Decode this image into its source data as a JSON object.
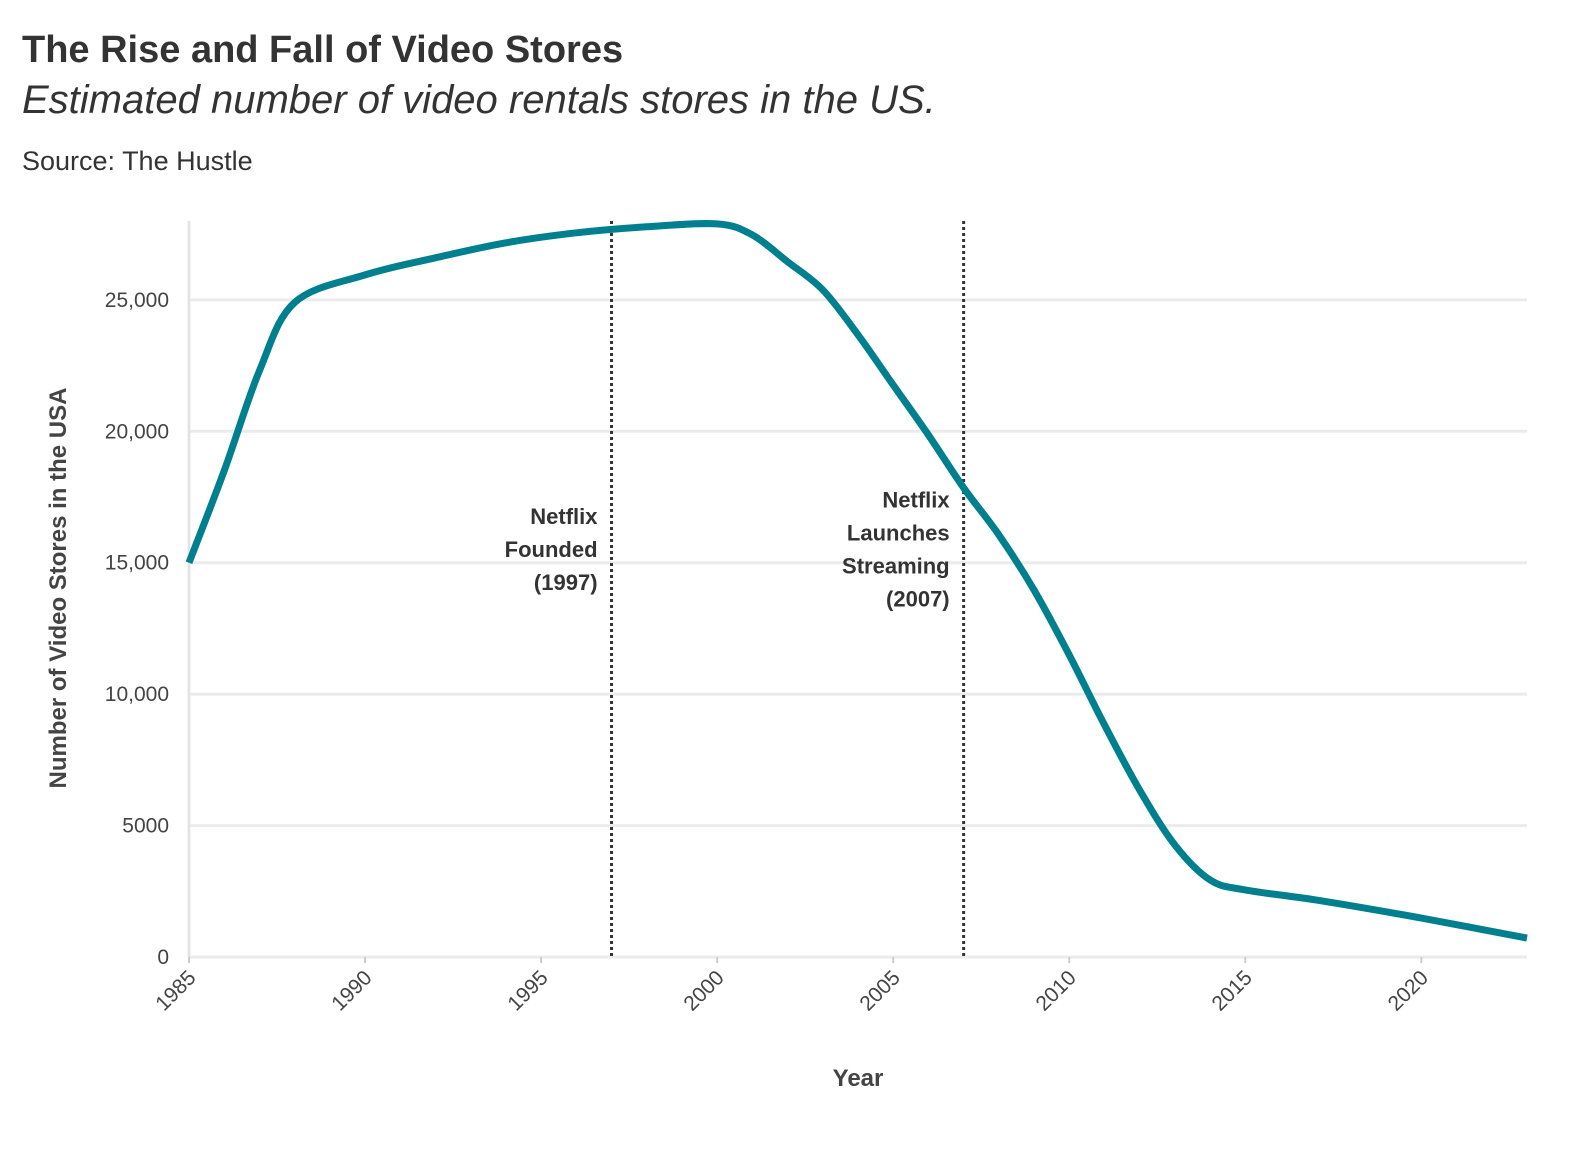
{
  "chart_data": {
    "type": "line",
    "title": "The Rise and Fall of Video Stores",
    "subtitle": "Estimated number of video rentals stores in the US.",
    "source": "Source: The Hustle",
    "x_label": "Year",
    "y_label": "Number of Video Stores in the USA",
    "x": [
      1985,
      1986,
      1987,
      1988,
      1990,
      1992,
      1994,
      1996,
      1998,
      2000,
      2001,
      2002,
      2003,
      2004,
      2005,
      2006,
      2007,
      2008,
      2009,
      2010,
      2011,
      2012,
      2013,
      2014,
      2015,
      2017,
      2020,
      2023
    ],
    "series": [
      {
        "name": "Video stores",
        "color": "#00808f",
        "values": [
          15000,
          18500,
          22300,
          24900,
          25950,
          26600,
          27170,
          27550,
          27780,
          27890,
          27470,
          26450,
          25380,
          23670,
          21760,
          19860,
          17850,
          16060,
          13960,
          11490,
          8830,
          6350,
          4260,
          2930,
          2550,
          2170,
          1480,
          720
        ]
      }
    ],
    "xlim": [
      1985,
      2023
    ],
    "xticks": [
      1985,
      1990,
      1995,
      2000,
      2005,
      2010,
      2015,
      2020
    ],
    "ylim": [
      0,
      28000
    ],
    "yticks": [
      0,
      5000,
      {
        "value": 10000,
        "label": "10,000"
      },
      {
        "value": 15000,
        "label": "15,000"
      },
      {
        "value": 20000,
        "label": "20,000"
      },
      {
        "value": 25000,
        "label": "25,000"
      }
    ],
    "grid": true,
    "annotations": [
      {
        "x": 1997,
        "lines": [
          "Netflix",
          "Founded",
          "(1997)"
        ]
      },
      {
        "x": 2007,
        "lines": [
          "Netflix",
          "Launches",
          "Streaming",
          "(2007)"
        ]
      }
    ]
  }
}
